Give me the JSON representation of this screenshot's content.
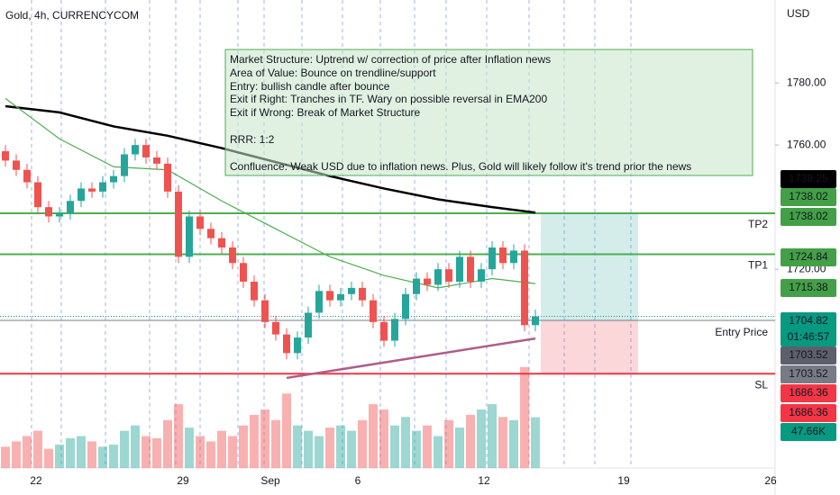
{
  "chart_data": {
    "type": "candlestick",
    "title": "Gold, 4h, CURRENCYCOM",
    "currency": "USD",
    "ylim": [
      1656,
      1806.7
    ],
    "yticks": [
      {
        "value": 1780,
        "label": "1780.00"
      },
      {
        "value": 1760,
        "label": "1760.00"
      },
      {
        "value": 1720,
        "label": "1720.00"
      }
    ],
    "xlabels": [
      "22",
      "29",
      "Sep",
      "6",
      "12",
      "19",
      "26"
    ],
    "up_color": "#26a69a",
    "down_color": "#ef5350",
    "opens": [
      1758,
      1755,
      1752,
      1748,
      1740,
      1737,
      1738,
      1742,
      1746,
      1745,
      1748,
      1750,
      1757,
      1760,
      1756,
      1754,
      1745,
      1724,
      1737,
      1733,
      1730,
      1727,
      1722,
      1716,
      1710,
      1703,
      1699,
      1693,
      1698,
      1706,
      1713,
      1710,
      1712,
      1714,
      1710,
      1703,
      1697,
      1704,
      1712,
      1717,
      1715,
      1720,
      1716,
      1724,
      1716,
      1720,
      1727,
      1722,
      1726,
      1702
    ],
    "highs": [
      1760,
      1757,
      1754,
      1750,
      1742,
      1740,
      1744,
      1748,
      1748,
      1750,
      1752,
      1759,
      1762,
      1762,
      1758,
      1756,
      1747,
      1739,
      1739,
      1735,
      1732,
      1729,
      1724,
      1718,
      1712,
      1705,
      1701,
      1700,
      1708,
      1715,
      1715,
      1714,
      1716,
      1716,
      1712,
      1705,
      1706,
      1714,
      1719,
      1719,
      1722,
      1722,
      1726,
      1726,
      1722,
      1729,
      1729,
      1728,
      1728,
      1707
    ],
    "lows": [
      1753,
      1750,
      1746,
      1738,
      1735,
      1735,
      1736,
      1740,
      1743,
      1743,
      1746,
      1748,
      1755,
      1754,
      1752,
      1743,
      1722,
      1722,
      1731,
      1728,
      1725,
      1720,
      1714,
      1708,
      1701,
      1697,
      1691,
      1691,
      1696,
      1704,
      1708,
      1708,
      1710,
      1708,
      1701,
      1695,
      1695,
      1702,
      1710,
      1713,
      1713,
      1714,
      1714,
      1714,
      1714,
      1718,
      1720,
      1720,
      1700,
      1700
    ],
    "closes": [
      1755,
      1752,
      1748,
      1740,
      1737,
      1738,
      1742,
      1746,
      1745,
      1748,
      1750,
      1757,
      1760,
      1756,
      1754,
      1745,
      1724,
      1737,
      1733,
      1730,
      1727,
      1722,
      1716,
      1710,
      1703,
      1699,
      1693,
      1698,
      1706,
      1713,
      1710,
      1712,
      1714,
      1710,
      1703,
      1697,
      1704,
      1712,
      1717,
      1715,
      1720,
      1716,
      1724,
      1716,
      1720,
      1727,
      1722,
      1726,
      1702,
      1704.82
    ],
    "volumes": [
      20,
      25,
      30,
      35,
      18,
      22,
      28,
      30,
      25,
      20,
      22,
      35,
      40,
      30,
      28,
      45,
      60,
      38,
      30,
      25,
      35,
      30,
      40,
      50,
      55,
      45,
      70,
      40,
      35,
      30,
      38,
      40,
      35,
      45,
      60,
      55,
      40,
      48,
      35,
      40,
      30,
      45,
      38,
      50,
      55,
      60,
      48,
      45,
      95,
      47.66
    ],
    "volume_lim": [
      0,
      110
    ],
    "indicators": [
      {
        "color": "#000000",
        "x": [
          0,
          5,
          10,
          15,
          20,
          25,
          30,
          35,
          40,
          45,
          49
        ],
        "values": [
          1772.5,
          1770.5,
          1766,
          1763,
          1759,
          1754.5,
          1750,
          1746,
          1742.5,
          1740,
          1738.25
        ]
      },
      {
        "color": "#4caf50",
        "x": [
          0,
          5,
          10,
          15,
          20,
          25,
          30,
          35,
          40,
          45,
          49
        ],
        "values": [
          1775,
          1762,
          1753,
          1752,
          1742,
          1733,
          1724,
          1718,
          1714,
          1717,
          1715.38
        ]
      }
    ],
    "trendline": {
      "color": "#b05c8a",
      "x": [
        26,
        49
      ],
      "values": [
        1685,
        1697.7
      ]
    },
    "levels": [
      {
        "name": "TP2",
        "value": 1738.02,
        "color": "#4caf50"
      },
      {
        "name": "TP1",
        "value": 1724.84,
        "color": "#4caf50"
      },
      {
        "name": "Entry Price",
        "value": 1703.52,
        "color": "#787b86"
      },
      {
        "name": "SL",
        "value": 1686.36,
        "color": "#f23645"
      }
    ],
    "last_price": 1704.82,
    "price_labels": [
      {
        "text": "1738.25",
        "color": "#000000"
      },
      {
        "text": "1738.02",
        "color": "#43a047"
      },
      {
        "text": "1738.02",
        "color": "#43a047"
      },
      {
        "text": "1724.84",
        "color": "#43a047"
      },
      {
        "text": "1715.38",
        "color": "#43a047"
      },
      {
        "text": "1704.82",
        "color": "#089981"
      },
      {
        "text": "01:46:57",
        "color": "#089981"
      },
      {
        "text": "1703.52",
        "color": "#5d606b"
      },
      {
        "text": "1703.52",
        "color": "#787b86"
      },
      {
        "text": "1686.36",
        "color": "#f23645"
      },
      {
        "text": "1686.36",
        "color": "#f23645"
      },
      {
        "text": "47.66K",
        "color": "#089981"
      }
    ],
    "note": [
      "Market Structure: Uptrend w/ correction of price after Inflation news",
      "Area of Value: Bounce on trendline/support",
      "Entry: bullish candle after bounce",
      "Exit if Right: Tranches in TF. Wary on possible reversal in EMA200",
      "Exit if Wrong: Break of Market Structure",
      "RRR: 1:2",
      "Confluence: Weak USD due to inflation news. Plus, Gold will likely follow it's trend prior the news"
    ]
  }
}
